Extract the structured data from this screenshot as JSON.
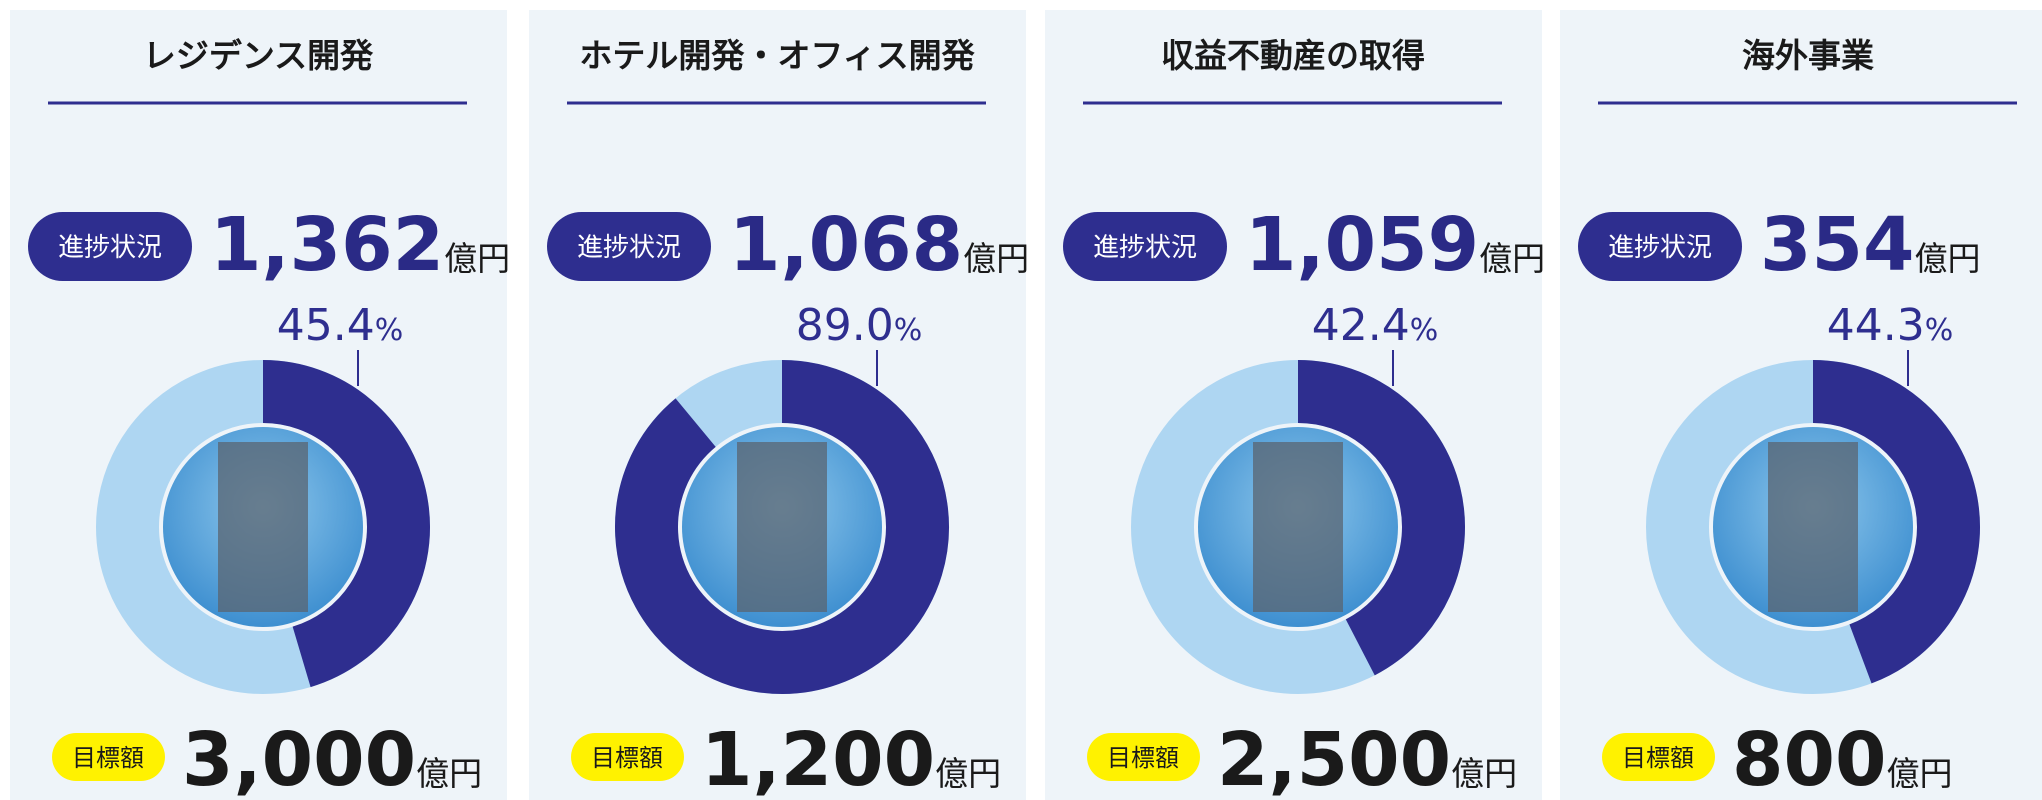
{
  "chart_data": [
    {
      "type": "donut",
      "title": "レジデンス開発",
      "progress_label": "進捗状況",
      "progress": 1362,
      "progress_text": "1,362",
      "unit": "億円",
      "percent": 45.4,
      "percent_label": "45.4",
      "percent_unit": "%",
      "target_label": "目標額",
      "target": 3000,
      "target_text": "3,000",
      "target_unit": "億円",
      "color": "#2e2e8f",
      "rest_color": "#aed6f2"
    },
    {
      "type": "donut",
      "title": "ホテル開発・オフィス開発",
      "progress_label": "進捗状況",
      "progress": 1068,
      "progress_text": "1,068",
      "unit": "億円",
      "percent": 89.0,
      "percent_label": "89.0",
      "percent_unit": "%",
      "target_label": "目標額",
      "target": 1200,
      "target_text": "1,200",
      "target_unit": "億円",
      "color": "#2e2e8f",
      "rest_color": "#aed6f2"
    },
    {
      "type": "donut",
      "title": "収益不動産の取得",
      "progress_label": "進捗状況",
      "progress": 1059,
      "progress_text": "1,059",
      "unit": "億円",
      "percent": 42.4,
      "percent_label": "42.4",
      "percent_unit": "%",
      "target_label": "目標額",
      "target": 2500,
      "target_text": "2,500",
      "target_unit": "億円",
      "color": "#2e2e8f",
      "rest_color": "#aed6f2"
    },
    {
      "type": "donut",
      "title": "海外事業",
      "progress_label": "進捗状況",
      "progress": 354,
      "progress_text": "354",
      "unit": "億円",
      "percent": 44.3,
      "percent_label": "44.3",
      "percent_unit": "%",
      "target_label": "目標額",
      "target": 800,
      "target_text": "800",
      "target_unit": "億円",
      "color": "#2e2e8f",
      "rest_color": "#aed6f2"
    }
  ]
}
